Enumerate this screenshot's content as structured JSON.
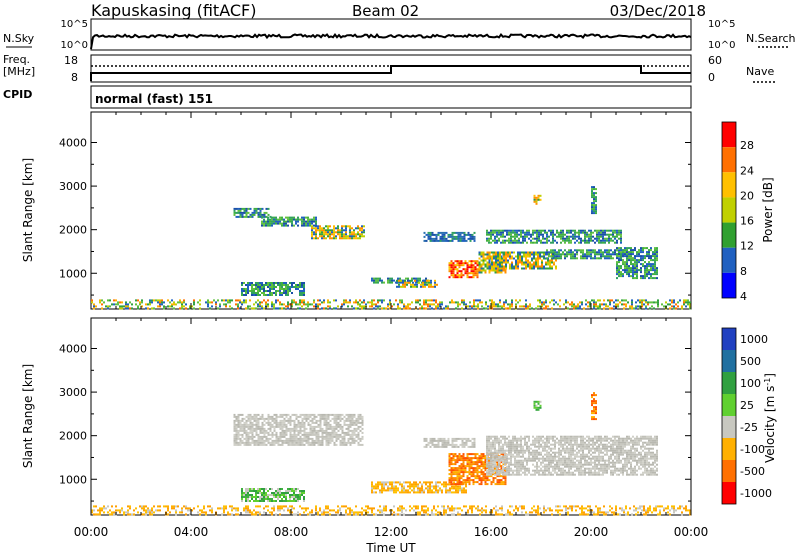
{
  "header": {
    "radar_title": "Kapuskasing (fitACF)",
    "beam_label": "Beam 02",
    "date_label": "03/Dec/2018"
  },
  "top_panels": {
    "nsky_label": "N.Sky",
    "nsearch_label": "N.Search",
    "nsky_ticks": [
      "10^5",
      "10^0"
    ],
    "nsearch_ticks": [
      "10^5",
      "10^0"
    ],
    "freq_label_line1": "Freq.",
    "freq_label_line2": "[MHz]",
    "freq_ticks": [
      "18",
      "8"
    ],
    "nave_label": "Nave",
    "nave_ticks": [
      "60",
      "0"
    ],
    "cpid_label": "CPID",
    "cpid_value": "normal (fast) 151"
  },
  "chart_data": [
    {
      "type": "heatmap",
      "name": "power",
      "xlabel": "",
      "ylabel": "Slant Range [km]",
      "xlim": [
        0,
        24
      ],
      "ylim": [
        180,
        4700
      ],
      "y_ticks": [
        1000,
        2000,
        3000,
        4000
      ],
      "x_ticks": [
        "00:00",
        "04:00",
        "08:00",
        "12:00",
        "16:00",
        "20:00",
        "00:00"
      ],
      "colorbar": {
        "label": "Power [dB]",
        "ticks": [
          "28",
          "24",
          "20",
          "16",
          "12",
          "8",
          "4"
        ],
        "colors": [
          "#ff0000",
          "#ff7000",
          "#ffc000",
          "#c0d000",
          "#30a030",
          "#2060c0",
          "#0000ff"
        ]
      },
      "echo_regions": [
        {
          "t_start": 5.7,
          "t_end": 7.2,
          "r_low": 2300,
          "r_high": 2500,
          "level": "medium"
        },
        {
          "t_start": 6.8,
          "t_end": 9.0,
          "r_low": 2100,
          "r_high": 2300,
          "level": "medium"
        },
        {
          "t_start": 8.8,
          "t_end": 10.9,
          "r_low": 1800,
          "r_high": 2100,
          "level": "high"
        },
        {
          "t_start": 6.0,
          "t_end": 8.5,
          "r_low": 500,
          "r_high": 800,
          "level": "medium"
        },
        {
          "t_start": 11.2,
          "t_end": 13.5,
          "r_low": 800,
          "r_high": 900,
          "level": "medium"
        },
        {
          "t_start": 12.2,
          "t_end": 13.8,
          "r_low": 700,
          "r_high": 850,
          "level": "high"
        },
        {
          "t_start": 13.3,
          "t_end": 15.3,
          "r_low": 1750,
          "r_high": 1950,
          "level": "low"
        },
        {
          "t_start": 14.3,
          "t_end": 15.5,
          "r_low": 900,
          "r_high": 1300,
          "level": "very_high"
        },
        {
          "t_start": 15.5,
          "t_end": 16.6,
          "r_low": 1000,
          "r_high": 1500,
          "level": "high"
        },
        {
          "t_start": 16.0,
          "t_end": 18.6,
          "r_low": 1100,
          "r_high": 1500,
          "level": "high"
        },
        {
          "t_start": 15.8,
          "t_end": 21.2,
          "r_low": 1700,
          "r_high": 2000,
          "level": "medium"
        },
        {
          "t_start": 18.2,
          "t_end": 21.3,
          "r_low": 1350,
          "r_high": 1550,
          "level": "medium"
        },
        {
          "t_start": 21.0,
          "t_end": 22.6,
          "r_low": 900,
          "r_high": 1600,
          "level": "medium"
        },
        {
          "t_start": 17.7,
          "t_end": 18.0,
          "r_low": 2600,
          "r_high": 2800,
          "level": "high"
        },
        {
          "t_start": 20.0,
          "t_end": 20.2,
          "r_low": 2400,
          "r_high": 3000,
          "level": "medium"
        },
        {
          "t_start": 0.0,
          "t_end": 24.0,
          "r_low": 180,
          "r_high": 400,
          "level": "ground"
        }
      ]
    },
    {
      "type": "heatmap",
      "name": "velocity",
      "xlabel": "Time UT",
      "ylabel": "Slant Range [km]",
      "xlim": [
        0,
        24
      ],
      "ylim": [
        180,
        4700
      ],
      "y_ticks": [
        1000,
        2000,
        3000,
        4000
      ],
      "x_ticks": [
        "00:00",
        "04:00",
        "08:00",
        "12:00",
        "16:00",
        "20:00",
        "00:00"
      ],
      "colorbar": {
        "label": "Velocity [m s^-1]",
        "ticks": [
          "1000",
          "500",
          "100",
          "25",
          "-25",
          "-100",
          "-500",
          "-1000"
        ],
        "colors": [
          "#2040c0",
          "#2070a0",
          "#30a040",
          "#60d030",
          "#c8c8c0",
          "#ffb000",
          "#ff7000",
          "#ff0000"
        ]
      },
      "echo_regions": [
        {
          "t_start": 5.7,
          "t_end": 10.9,
          "r_low": 1800,
          "r_high": 2500,
          "level": "near_zero"
        },
        {
          "t_start": 6.0,
          "t_end": 8.5,
          "r_low": 500,
          "r_high": 800,
          "level": "positive"
        },
        {
          "t_start": 11.2,
          "t_end": 15.0,
          "r_low": 700,
          "r_high": 950,
          "level": "negative"
        },
        {
          "t_start": 13.3,
          "t_end": 15.3,
          "r_low": 1750,
          "r_high": 1950,
          "level": "near_zero"
        },
        {
          "t_start": 14.3,
          "t_end": 16.6,
          "r_low": 900,
          "r_high": 1600,
          "level": "strong_negative"
        },
        {
          "t_start": 15.8,
          "t_end": 22.6,
          "r_low": 1100,
          "r_high": 2000,
          "level": "near_zero"
        },
        {
          "t_start": 17.7,
          "t_end": 18.0,
          "r_low": 2600,
          "r_high": 2800,
          "level": "positive"
        },
        {
          "t_start": 20.0,
          "t_end": 20.2,
          "r_low": 2400,
          "r_high": 3000,
          "level": "strong_negative"
        },
        {
          "t_start": 0.0,
          "t_end": 24.0,
          "r_low": 180,
          "r_high": 400,
          "level": "negative"
        }
      ]
    }
  ]
}
